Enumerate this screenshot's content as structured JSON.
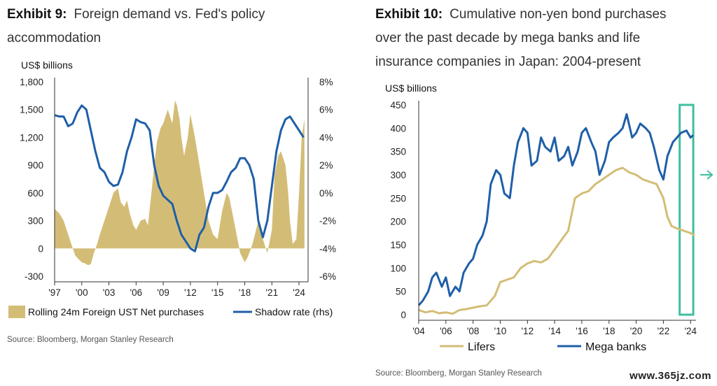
{
  "exhibit9": {
    "title_prefix": "Exhibit 9:",
    "title_line1": "Foreign demand vs. Fed's policy",
    "title_line2": "accommodation",
    "source": "Source: Bloomberg, Morgan Stanley Research"
  },
  "exhibit10": {
    "title_prefix": "Exhibit 10:",
    "title_line1": "Cumulative non-yen bond purchases",
    "title_line2": "over the past decade by mega banks and life",
    "title_line3": "insurance companies in Japan: 2004-present",
    "source": "Source: Bloomberg, Morgan Stanley Research"
  },
  "watermark": "www.365jz.com",
  "colors": {
    "gold": "#d3bd76",
    "blue": "#1f5fa8",
    "teal": "#3fbf9f",
    "axis": "#333333"
  },
  "chart_data": [
    {
      "type": "area",
      "ylabel": "US$ billions",
      "ylim": [
        -300,
        1800
      ],
      "yticks": [
        "1,800",
        "1,500",
        "1,200",
        "900",
        "600",
        "300",
        "0",
        "-300"
      ],
      "y2lim": [
        -6,
        8
      ],
      "y2ticks": [
        "8%",
        "6%",
        "4%",
        "2%",
        "0%",
        "-2%",
        "-4%",
        "-6%"
      ],
      "xlim": [
        1997,
        2025
      ],
      "xticks": [
        "'97",
        "'00",
        "'03",
        "'06",
        "'09",
        "'12",
        "'15",
        "'18",
        "'21",
        "'24"
      ],
      "legend": "bottom",
      "legend_labels": [
        "Rolling 24m Foreign UST Net purchases",
        "Shadow rate (rhs)"
      ],
      "series": [
        {
          "name": "Rolling 24m Foreign UST Net purchases",
          "kind": "area",
          "axis": "left",
          "x": [
            1997.0,
            1997.5,
            1998.0,
            1998.5,
            1999.0,
            1999.3,
            1999.7,
            2000.0,
            2000.3,
            2000.7,
            2001.0,
            2001.3,
            2001.7,
            2002.0,
            2002.5,
            2003.0,
            2003.5,
            2004.0,
            2004.3,
            2004.7,
            2005.0,
            2005.3,
            2005.7,
            2006.0,
            2006.5,
            2007.0,
            2007.3,
            2007.7,
            2008.0,
            2008.3,
            2008.7,
            2009.0,
            2009.5,
            2010.0,
            2010.3,
            2010.5,
            2010.8,
            2011.0,
            2011.3,
            2011.7,
            2012.0,
            2012.5,
            2013.0,
            2013.5,
            2014.0,
            2014.5,
            2015.0,
            2015.5,
            2016.0,
            2016.3,
            2016.6,
            2017.0,
            2017.5,
            2018.0,
            2018.3,
            2018.7,
            2019.0,
            2019.5,
            2020.0,
            2020.5,
            2021.0,
            2021.3,
            2021.7,
            2022.0,
            2022.5,
            2022.8,
            2023.0,
            2023.3,
            2023.7,
            2024.0,
            2024.3,
            2024.6
          ],
          "values": [
            430,
            380,
            300,
            150,
            0,
            -80,
            -120,
            -150,
            -160,
            -180,
            -170,
            -60,
            50,
            150,
            300,
            450,
            600,
            650,
            500,
            450,
            520,
            380,
            250,
            200,
            300,
            320,
            250,
            600,
            900,
            1150,
            1300,
            1350,
            1500,
            1350,
            1600,
            1550,
            1400,
            1200,
            1000,
            1200,
            1450,
            1200,
            900,
            600,
            300,
            150,
            100,
            400,
            600,
            550,
            400,
            200,
            -50,
            -150,
            -100,
            0,
            100,
            300,
            100,
            -50,
            200,
            800,
            1000,
            1050,
            900,
            600,
            300,
            50,
            100,
            600,
            1200,
            1400
          ]
        },
        {
          "name": "Shadow rate (rhs)",
          "kind": "line",
          "axis": "right",
          "x": [
            1997.0,
            1997.5,
            1998.0,
            1998.5,
            1999.0,
            1999.5,
            2000.0,
            2000.5,
            2001.0,
            2001.5,
            2002.0,
            2002.5,
            2003.0,
            2003.5,
            2004.0,
            2004.5,
            2005.0,
            2005.5,
            2006.0,
            2006.5,
            2007.0,
            2007.5,
            2008.0,
            2008.5,
            2009.0,
            2009.5,
            2010.0,
            2010.5,
            2011.0,
            2011.5,
            2012.0,
            2012.5,
            2013.0,
            2013.5,
            2014.0,
            2014.5,
            2015.0,
            2015.5,
            2016.0,
            2016.5,
            2017.0,
            2017.5,
            2018.0,
            2018.5,
            2019.0,
            2019.5,
            2020.0,
            2020.5,
            2021.0,
            2021.5,
            2022.0,
            2022.5,
            2023.0,
            2023.5,
            2024.0,
            2024.5
          ],
          "values": [
            5.6,
            5.5,
            5.5,
            4.8,
            5.0,
            5.8,
            6.3,
            6.0,
            4.5,
            3.0,
            1.8,
            1.5,
            0.8,
            0.5,
            0.6,
            1.5,
            3.0,
            4.0,
            5.3,
            5.1,
            5.0,
            4.5,
            2.0,
            0.5,
            -0.2,
            -0.5,
            -0.8,
            -2.0,
            -3.0,
            -3.5,
            -4.0,
            -4.2,
            -3.0,
            -2.5,
            -1.0,
            0.0,
            0.0,
            0.2,
            0.8,
            1.5,
            1.8,
            2.5,
            2.5,
            2.0,
            1.0,
            -2.0,
            -3.2,
            -2.0,
            0.5,
            3.0,
            4.5,
            5.3,
            5.5,
            5.0,
            4.5,
            4.0
          ]
        }
      ]
    },
    {
      "type": "line",
      "ylabel": "US$ billions",
      "ylim": [
        0,
        450
      ],
      "yticks": [
        "450",
        "400",
        "350",
        "300",
        "250",
        "200",
        "150",
        "100",
        "50",
        "0"
      ],
      "xlim": [
        2004,
        2024.4
      ],
      "xticks": [
        "'04",
        "'06",
        "'08",
        "'10",
        "'12",
        "'14",
        "'16",
        "'18",
        "'20",
        "'22",
        "'24"
      ],
      "legend": "bottom",
      "highlight_box": [
        2023.2,
        2024.2
      ],
      "series": [
        {
          "name": "Lifers",
          "x": [
            2004.0,
            2004.5,
            2005.0,
            2005.5,
            2006.0,
            2006.5,
            2007.0,
            2007.5,
            2008.0,
            2008.5,
            2009.0,
            2009.3,
            2009.6,
            2010.0,
            2010.5,
            2011.0,
            2011.5,
            2012.0,
            2012.5,
            2013.0,
            2013.5,
            2014.0,
            2014.5,
            2015.0,
            2015.5,
            2016.0,
            2016.5,
            2017.0,
            2017.5,
            2018.0,
            2018.5,
            2019.0,
            2019.5,
            2020.0,
            2020.5,
            2021.0,
            2021.5,
            2022.0,
            2022.3,
            2022.6,
            2023.0,
            2023.5,
            2024.0,
            2024.3
          ],
          "values": [
            10,
            5,
            8,
            3,
            5,
            2,
            10,
            12,
            15,
            18,
            20,
            30,
            40,
            70,
            75,
            80,
            100,
            110,
            115,
            112,
            120,
            140,
            160,
            180,
            250,
            260,
            265,
            280,
            290,
            300,
            310,
            315,
            305,
            300,
            290,
            285,
            280,
            250,
            210,
            190,
            185,
            180,
            175,
            170
          ]
        },
        {
          "name": "Mega banks",
          "x": [
            2004.0,
            2004.3,
            2004.7,
            2005.0,
            2005.3,
            2005.7,
            2006.0,
            2006.3,
            2006.7,
            2007.0,
            2007.3,
            2007.7,
            2008.0,
            2008.3,
            2008.7,
            2009.0,
            2009.3,
            2009.7,
            2010.0,
            2010.3,
            2010.7,
            2011.0,
            2011.3,
            2011.7,
            2012.0,
            2012.3,
            2012.7,
            2013.0,
            2013.3,
            2013.7,
            2014.0,
            2014.3,
            2014.7,
            2015.0,
            2015.3,
            2015.7,
            2016.0,
            2016.3,
            2016.7,
            2017.0,
            2017.3,
            2017.7,
            2018.0,
            2018.3,
            2018.7,
            2019.0,
            2019.3,
            2019.7,
            2020.0,
            2020.3,
            2020.7,
            2021.0,
            2021.3,
            2021.7,
            2022.0,
            2022.3,
            2022.7,
            2023.0,
            2023.3,
            2023.7,
            2024.0,
            2024.2
          ],
          "values": [
            20,
            30,
            50,
            80,
            90,
            60,
            80,
            40,
            60,
            50,
            90,
            110,
            120,
            150,
            170,
            200,
            280,
            310,
            300,
            260,
            250,
            320,
            370,
            400,
            390,
            320,
            330,
            380,
            360,
            350,
            380,
            330,
            340,
            360,
            320,
            350,
            390,
            400,
            370,
            350,
            300,
            330,
            370,
            380,
            390,
            400,
            430,
            380,
            390,
            410,
            400,
            390,
            360,
            310,
            290,
            340,
            370,
            380,
            390,
            395,
            380,
            385
          ]
        }
      ]
    }
  ]
}
